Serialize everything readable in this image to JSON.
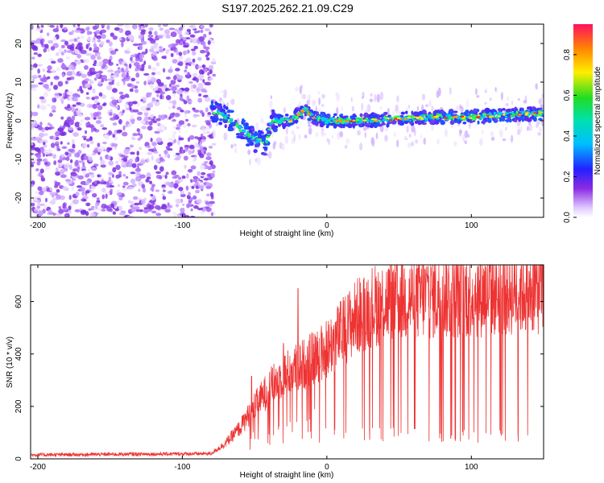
{
  "title": "S197.2025.262.21.09.C29",
  "chart_data": [
    {
      "type": "heatmap",
      "name": "spectrogram",
      "xlabel": "Height of straight line (km)",
      "ylabel": "Frequency (Hz)",
      "xlim": [
        -205,
        150
      ],
      "ylim": [
        -25,
        25
      ],
      "xticks": [
        -200,
        -100,
        0,
        100
      ],
      "yticks": [
        -20,
        -10,
        0,
        10,
        20
      ],
      "colorbar": {
        "label": "Normalized spectral amplitude",
        "ticks": [
          0.0,
          0.2,
          0.4,
          0.6,
          0.8
        ],
        "range": [
          0.0,
          0.95
        ]
      },
      "noise_region_km": [
        -205,
        -78
      ],
      "signal_track": [
        {
          "x": -80,
          "f": 3
        },
        {
          "x": -70,
          "f": 1
        },
        {
          "x": -60,
          "f": -2
        },
        {
          "x": -50,
          "f": -5
        },
        {
          "x": -42,
          "f": -6
        },
        {
          "x": -38,
          "f": 0
        },
        {
          "x": -25,
          "f": 0
        },
        {
          "x": -15,
          "f": 3
        },
        {
          "x": -10,
          "f": 1
        },
        {
          "x": 0,
          "f": 0
        },
        {
          "x": 25,
          "f": 0
        },
        {
          "x": 50,
          "f": 0.5
        },
        {
          "x": 75,
          "f": 1
        },
        {
          "x": 100,
          "f": 1
        },
        {
          "x": 125,
          "f": 1.5
        },
        {
          "x": 150,
          "f": 2
        }
      ]
    },
    {
      "type": "line",
      "name": "snr",
      "xlabel": "Height of straight line (km)",
      "ylabel": "SNR (10 * v/v)",
      "xlim": [
        -205,
        150
      ],
      "ylim": [
        0,
        740
      ],
      "xticks": [
        -200,
        -100,
        0,
        100
      ],
      "yticks": [
        0,
        200,
        400,
        600
      ],
      "color": "#ee3333",
      "envelope": [
        {
          "x": -205,
          "y": 15
        },
        {
          "x": -80,
          "y": 20
        },
        {
          "x": -70,
          "y": 60
        },
        {
          "x": -60,
          "y": 120
        },
        {
          "x": -50,
          "y": 200
        },
        {
          "x": -40,
          "y": 270
        },
        {
          "x": -30,
          "y": 320
        },
        {
          "x": -20,
          "y": 350
        },
        {
          "x": -10,
          "y": 380
        },
        {
          "x": 0,
          "y": 420
        },
        {
          "x": 10,
          "y": 480
        },
        {
          "x": 20,
          "y": 540
        },
        {
          "x": 30,
          "y": 580
        },
        {
          "x": 40,
          "y": 600
        },
        {
          "x": 50,
          "y": 610
        },
        {
          "x": 60,
          "y": 615
        },
        {
          "x": 70,
          "y": 620
        },
        {
          "x": 80,
          "y": 625
        },
        {
          "x": 100,
          "y": 630
        },
        {
          "x": 120,
          "y": 640
        },
        {
          "x": 150,
          "y": 650
        }
      ],
      "peaks": [
        {
          "x": -52,
          "y": 315
        },
        {
          "x": -30,
          "y": 440
        },
        {
          "x": -20,
          "y": 650
        },
        {
          "x": 70,
          "y": 735
        },
        {
          "x": 140,
          "y": 715
        }
      ],
      "dropout_region_km": [
        -5,
        140
      ],
      "dropout_floor": 60
    }
  ]
}
